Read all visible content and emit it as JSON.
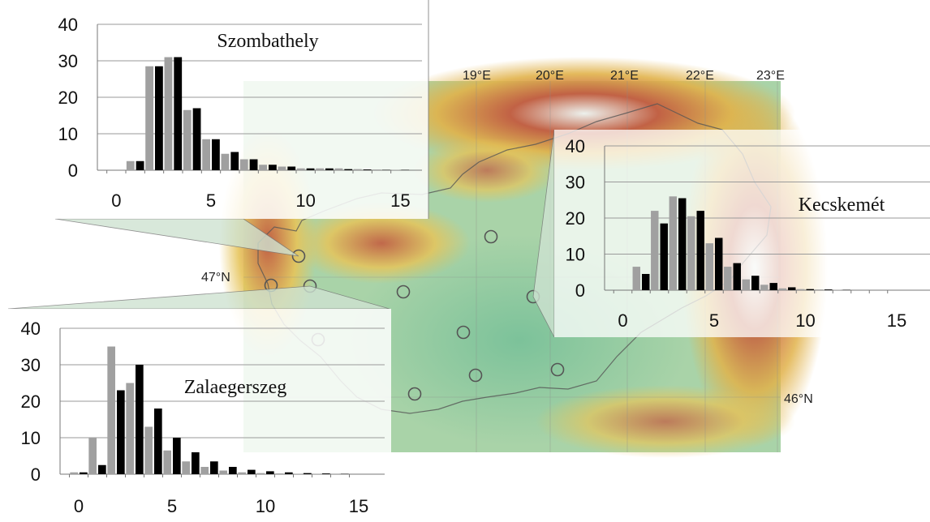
{
  "map": {
    "lon_labels": [
      "19°E",
      "20°E",
      "21°E",
      "22°E",
      "23°E"
    ],
    "lat_labels": [
      "47°N",
      "46°N"
    ],
    "colors": {
      "lowland": "#8cc9a6",
      "hill": "#d9d49a",
      "mountain": "#c85a3c",
      "peak": "#f2f2f2",
      "border": "#555555",
      "station": "#555555"
    }
  },
  "chart_data": [
    {
      "type": "bar",
      "title": "Szombathely",
      "xticks": [
        "0",
        "5",
        "10",
        "15"
      ],
      "yticks": [
        "0",
        "10",
        "20",
        "30",
        "40"
      ],
      "xlim": [
        -1,
        16
      ],
      "ylim": [
        0,
        40
      ],
      "x": [
        1,
        2,
        3,
        4,
        5,
        6,
        7,
        8,
        9,
        10,
        11,
        12,
        13,
        14,
        15
      ],
      "series": [
        {
          "color": "#a0a0a0",
          "values": [
            2.5,
            28.5,
            31,
            16.5,
            8.5,
            4.5,
            3,
            1.5,
            1,
            0.5,
            0.5,
            0.5,
            0.3,
            0.2,
            0.1
          ]
        },
        {
          "color": "#000000",
          "values": [
            2.5,
            28.5,
            31,
            17,
            8.5,
            5,
            3,
            1.5,
            1,
            0.5,
            0.5,
            0.3,
            0.2,
            0.1,
            0.1
          ]
        }
      ]
    },
    {
      "type": "bar",
      "title": "Kecskemét",
      "xticks": [
        "0",
        "5",
        "10",
        "15"
      ],
      "yticks": [
        "0",
        "10",
        "20",
        "30",
        "40"
      ],
      "xlim": [
        -1,
        16
      ],
      "ylim": [
        0,
        40
      ],
      "x": [
        0,
        1,
        2,
        3,
        4,
        5,
        6,
        7,
        8,
        9,
        10,
        11,
        12
      ],
      "series": [
        {
          "color": "#a0a0a0",
          "values": [
            0,
            6.5,
            22,
            26,
            20.5,
            13,
            6.5,
            3,
            1.5,
            0.5,
            0.3,
            0.2,
            0.1
          ]
        },
        {
          "color": "#000000",
          "values": [
            0,
            4.5,
            18.5,
            25.5,
            22,
            14.5,
            7.5,
            4,
            2,
            0.8,
            0.3,
            0.2,
            0.1
          ]
        }
      ]
    },
    {
      "type": "bar",
      "title": "Zalaegerszeg",
      "xticks": [
        "0",
        "5",
        "10",
        "15"
      ],
      "yticks": [
        "0",
        "10",
        "20",
        "30",
        "40"
      ],
      "xlim": [
        -1,
        16
      ],
      "ylim": [
        0,
        40
      ],
      "x": [
        0,
        1,
        2,
        3,
        4,
        5,
        6,
        7,
        8,
        9,
        10,
        11,
        12,
        13,
        14
      ],
      "series": [
        {
          "color": "#a0a0a0",
          "values": [
            0.5,
            10,
            35,
            25,
            13,
            6.5,
            3.5,
            2,
            1,
            0.5,
            0.3,
            0.2,
            0.1,
            0.1,
            0.05
          ]
        },
        {
          "color": "#000000",
          "values": [
            0.5,
            2.5,
            23,
            30,
            18,
            10,
            6,
            3.5,
            2,
            1.2,
            0.8,
            0.5,
            0.3,
            0.2,
            0.1
          ]
        }
      ]
    }
  ]
}
